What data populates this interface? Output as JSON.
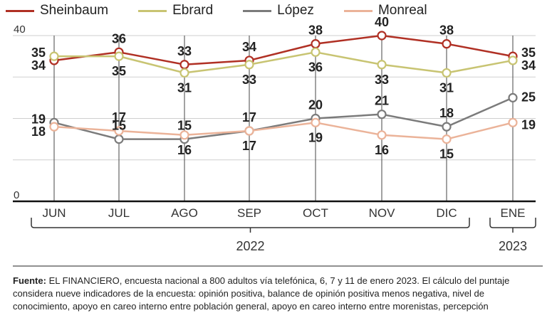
{
  "chart_data": {
    "type": "line",
    "categories": [
      "JUN",
      "JUL",
      "AGO",
      "SEP",
      "OCT",
      "NOV",
      "DIC",
      "ENE"
    ],
    "year_groups": [
      {
        "label": "2022",
        "from": 0,
        "to": 6
      },
      {
        "label": "2023",
        "from": 7,
        "to": 7
      }
    ],
    "ylim": [
      0,
      40
    ],
    "yticks": [
      0,
      40
    ],
    "grid": true,
    "legend_position": "top",
    "series": [
      {
        "name": "Sheinbaum",
        "color": "#b03024",
        "values": [
          34,
          36,
          33,
          34,
          38,
          40,
          38,
          35
        ]
      },
      {
        "name": "Ebrard",
        "color": "#c8c472",
        "values": [
          35,
          35,
          31,
          33,
          36,
          33,
          31,
          34
        ]
      },
      {
        "name": "López",
        "color": "#7b7b7b",
        "values": [
          19,
          15,
          15,
          17,
          20,
          21,
          18,
          25
        ]
      },
      {
        "name": "Monreal",
        "color": "#ebb399",
        "values": [
          18,
          17,
          16,
          17,
          19,
          16,
          15,
          19
        ]
      }
    ]
  },
  "source": {
    "label": "Fuente:",
    "text": " EL FINANCIERO, encuesta nacional a 800 adultos vía telefónica, 6, 7 y 11 de enero 2023. El cálculo del puntaje considera nueve indicadores de la encuesta: opinión positiva, balance de opinión positiva menos negativa, nivel de conocimiento, apoyo en careo interno entre población general, apoyo en careo interno entre morenistas, percepción"
  }
}
